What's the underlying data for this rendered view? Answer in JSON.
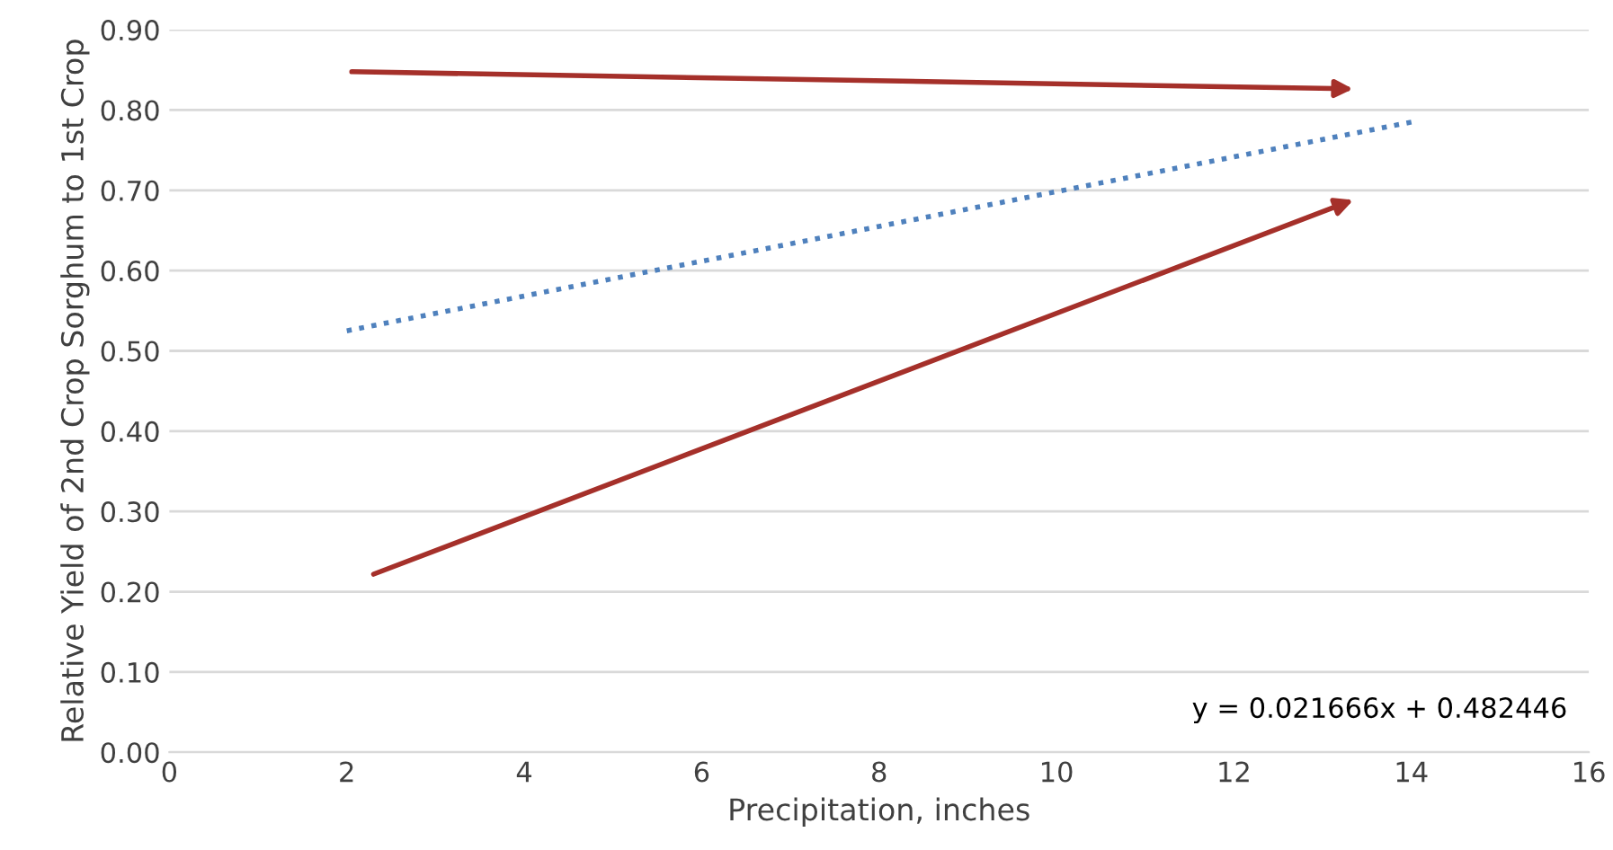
{
  "chart_data": {
    "type": "line",
    "xlabel": "Precipitation, inches",
    "ylabel": "Relative Yield of 2nd Crop Sorghum to 1st Crop",
    "series": [
      {
        "x": [
          2,
          14
        ],
        "values": [
          0.525,
          0.785
        ],
        "color": "#4f81bd",
        "line_style": "dotted"
      }
    ],
    "xlim": [
      0,
      16
    ],
    "xticks": [
      0,
      2,
      4,
      6,
      8,
      10,
      12,
      14,
      16
    ],
    "ylim": [
      0,
      0.9
    ],
    "yticks": [
      {
        "value": 0,
        "label": "0.00"
      },
      {
        "value": 0.1,
        "label": "0.10"
      },
      {
        "value": 0.2,
        "label": "0.20"
      },
      {
        "value": 0.3,
        "label": "0.30"
      },
      {
        "value": 0.4,
        "label": "0.40"
      },
      {
        "value": 0.5,
        "label": "0.50"
      },
      {
        "value": 0.6,
        "label": "0.60"
      },
      {
        "value": 0.7,
        "label": "0.70"
      },
      {
        "value": 0.8,
        "label": "0.80"
      },
      {
        "value": 0.9,
        "label": "0.90"
      }
    ],
    "grid": "y",
    "annotations": [
      "y = 0.021666x + 0.482446"
    ]
  }
}
